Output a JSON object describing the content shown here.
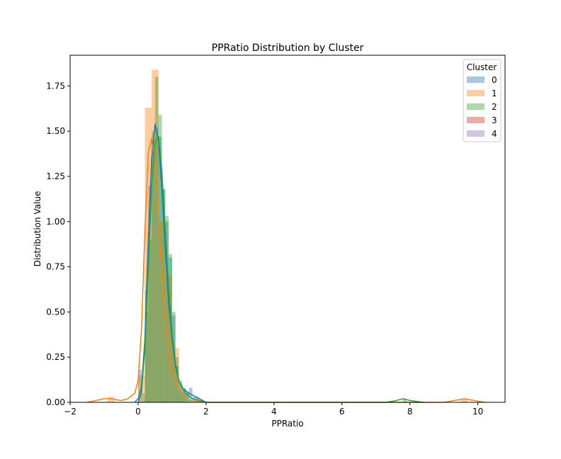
{
  "chart_data": {
    "type": "histogram",
    "title": "PPRatio Distribution by Cluster",
    "xlabel": "PPRatio",
    "ylabel": "Distribution Value",
    "xlim": [
      -2.0,
      10.8
    ],
    "ylim": [
      0,
      1.92
    ],
    "xticks": [
      -2,
      0,
      2,
      4,
      6,
      8,
      10
    ],
    "yticks": [
      0.0,
      0.25,
      0.5,
      0.75,
      1.0,
      1.25,
      1.5,
      1.75
    ],
    "grid": false,
    "legend": {
      "title": "Cluster",
      "placement": "top-right"
    },
    "series": [
      {
        "name": "0",
        "color": "#1f77b4",
        "bin_width": 0.1,
        "bins": [
          [
            0.0,
            0.18
          ],
          [
            0.1,
            0.05
          ],
          [
            0.2,
            0.5
          ],
          [
            0.3,
            1.2
          ],
          [
            0.4,
            1.45
          ],
          [
            0.5,
            1.52
          ],
          [
            0.6,
            1.47
          ],
          [
            0.7,
            1.18
          ],
          [
            0.8,
            1.0
          ],
          [
            0.9,
            0.8
          ],
          [
            1.0,
            0.5
          ],
          [
            1.1,
            0.25
          ],
          [
            1.2,
            0.12
          ],
          [
            1.3,
            0.08
          ],
          [
            1.4,
            0.06
          ],
          [
            1.5,
            0.08
          ],
          [
            1.6,
            0.03
          ],
          [
            1.7,
            0.03
          ]
        ],
        "kde": [
          [
            -0.1,
            0.0
          ],
          [
            0.0,
            0.02
          ],
          [
            0.1,
            0.08
          ],
          [
            0.2,
            0.35
          ],
          [
            0.3,
            0.9
          ],
          [
            0.4,
            1.35
          ],
          [
            0.5,
            1.54
          ],
          [
            0.6,
            1.45
          ],
          [
            0.7,
            1.18
          ],
          [
            0.8,
            0.85
          ],
          [
            0.9,
            0.55
          ],
          [
            1.0,
            0.35
          ],
          [
            1.1,
            0.2
          ],
          [
            1.2,
            0.12
          ],
          [
            1.3,
            0.08
          ],
          [
            1.5,
            0.05
          ],
          [
            1.7,
            0.03
          ],
          [
            1.9,
            0.01
          ],
          [
            2.0,
            0.0
          ]
        ]
      },
      {
        "name": "1",
        "color": "#ff7f0e",
        "bin_width": 0.2,
        "bins": [
          [
            -0.9,
            0.03
          ],
          [
            0.0,
            0.15
          ],
          [
            0.2,
            1.63
          ],
          [
            0.4,
            1.84
          ],
          [
            0.6,
            1.0
          ],
          [
            0.8,
            0.7
          ],
          [
            1.0,
            0.3
          ],
          [
            1.2,
            0.05
          ],
          [
            9.5,
            0.02
          ]
        ],
        "kde": [
          [
            -1.5,
            0.0
          ],
          [
            -1.0,
            0.02
          ],
          [
            -0.8,
            0.02
          ],
          [
            -0.5,
            0.01
          ],
          [
            -0.3,
            0.02
          ],
          [
            -0.1,
            0.05
          ],
          [
            0.0,
            0.12
          ],
          [
            0.1,
            0.4
          ],
          [
            0.2,
            0.95
          ],
          [
            0.3,
            1.38
          ],
          [
            0.4,
            1.46
          ],
          [
            0.5,
            1.3
          ],
          [
            0.6,
            1.0
          ],
          [
            0.7,
            0.7
          ],
          [
            0.8,
            0.45
          ],
          [
            0.9,
            0.28
          ],
          [
            1.0,
            0.17
          ],
          [
            1.2,
            0.07
          ],
          [
            1.5,
            0.01
          ],
          [
            2.0,
            0.0
          ],
          [
            9.0,
            0.0
          ],
          [
            9.3,
            0.01
          ],
          [
            9.6,
            0.02
          ],
          [
            9.9,
            0.01
          ],
          [
            10.2,
            0.0
          ]
        ]
      },
      {
        "name": "2",
        "color": "#2ca02c",
        "bin_width": 0.1,
        "bins": [
          [
            0.2,
            0.62
          ],
          [
            0.3,
            0.9
          ],
          [
            0.4,
            1.5
          ],
          [
            0.5,
            1.8
          ],
          [
            0.6,
            1.59
          ],
          [
            0.7,
            1.18
          ],
          [
            0.8,
            1.03
          ],
          [
            0.9,
            0.82
          ],
          [
            1.0,
            0.48
          ],
          [
            1.1,
            0.2
          ],
          [
            1.2,
            0.1
          ],
          [
            1.3,
            0.07
          ],
          [
            1.4,
            0.05
          ],
          [
            7.8,
            0.02
          ]
        ],
        "kde": [
          [
            0.0,
            0.0
          ],
          [
            0.1,
            0.05
          ],
          [
            0.2,
            0.3
          ],
          [
            0.3,
            0.75
          ],
          [
            0.4,
            1.2
          ],
          [
            0.5,
            1.44
          ],
          [
            0.6,
            1.47
          ],
          [
            0.7,
            1.28
          ],
          [
            0.8,
            0.95
          ],
          [
            0.9,
            0.62
          ],
          [
            1.0,
            0.38
          ],
          [
            1.1,
            0.22
          ],
          [
            1.2,
            0.12
          ],
          [
            1.4,
            0.05
          ],
          [
            1.6,
            0.02
          ],
          [
            2.0,
            0.0
          ],
          [
            7.3,
            0.0
          ],
          [
            7.6,
            0.01
          ],
          [
            7.8,
            0.02
          ],
          [
            8.0,
            0.01
          ],
          [
            8.4,
            0.0
          ]
        ]
      },
      {
        "name": "3",
        "color": "#d62728",
        "bin_width": 0.1,
        "bins": [],
        "kde": []
      },
      {
        "name": "4",
        "color": "#9467bd",
        "bin_width": 0.1,
        "bins": [],
        "kde": []
      }
    ]
  }
}
